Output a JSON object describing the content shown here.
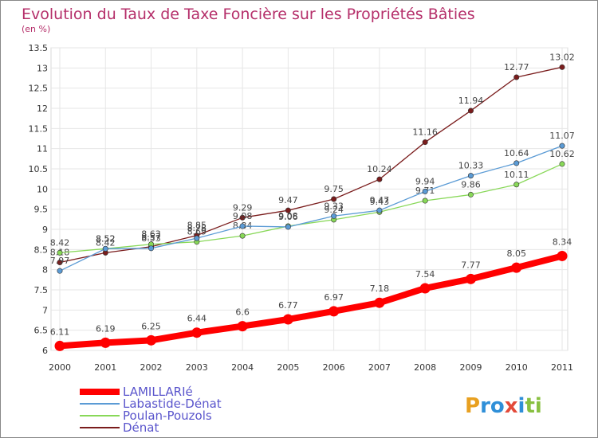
{
  "chart_data": {
    "type": "line",
    "title": "Evolution du Taux de Taxe Foncière sur les Propriétés Bâties",
    "subtitle": "(en %)",
    "x": [
      "2000",
      "2001",
      "2002",
      "2003",
      "2004",
      "2005",
      "2006",
      "2007",
      "2008",
      "2009",
      "2010",
      "2011"
    ],
    "ylim": [
      6,
      13.5
    ],
    "yticks": [
      "6",
      "6.5",
      "7",
      "7.5",
      "8",
      "8.5",
      "9",
      "9.5",
      "10",
      "10.5",
      "11",
      "11.5",
      "12",
      "12.5",
      "13",
      "13.5"
    ],
    "grid": true,
    "legend_position": "bottom-left",
    "series": [
      {
        "name": "LAMILLARIé",
        "color": "#ff0000",
        "values": [
          6.11,
          6.19,
          6.25,
          6.44,
          6.6,
          6.77,
          6.97,
          7.18,
          7.54,
          7.77,
          8.05,
          8.34
        ],
        "labels": [
          "6.11",
          "6.19",
          "6.25",
          "6.44",
          "6.6",
          "6.77",
          "6.97",
          "7.18",
          "7.54",
          "7.77",
          "8.05",
          "8.34"
        ]
      },
      {
        "name": "Labastide-Dénat",
        "color": "#5b9bd5",
        "values": [
          7.97,
          8.52,
          8.53,
          8.78,
          9.08,
          9.06,
          9.33,
          9.47,
          9.94,
          10.33,
          10.64,
          11.07
        ],
        "labels": [
          "7.97",
          "8.52",
          "8.53",
          "8.78",
          "9.08",
          "9.06",
          "9.33",
          "9.47",
          "9.94",
          "10.33",
          "10.64",
          "11.07"
        ]
      },
      {
        "name": "Poulan-Pouzols",
        "color": "#88d858",
        "values": [
          8.42,
          8.52,
          8.63,
          8.69,
          8.84,
          9.08,
          9.24,
          9.43,
          9.71,
          9.86,
          10.11,
          10.62
        ],
        "labels": [
          "8.42",
          "8.52",
          "8.63",
          "8.69",
          "8.84",
          "9.08",
          "9.24",
          "9.43",
          "9.71",
          "9.86",
          "10.11",
          "10.62"
        ]
      },
      {
        "name": "Dénat",
        "color": "#7a1c1c",
        "values": [
          8.18,
          8.42,
          8.57,
          8.85,
          9.29,
          9.47,
          9.75,
          10.24,
          11.16,
          11.94,
          12.77,
          13.02
        ],
        "labels": [
          "8.18",
          "8.42",
          "8.57",
          "8.85",
          "9.29",
          "9.47",
          "9.75",
          "10.24",
          "11.16",
          "11.94",
          "12.77",
          "13.02"
        ]
      }
    ]
  },
  "brand": {
    "text": "Proxiti"
  }
}
